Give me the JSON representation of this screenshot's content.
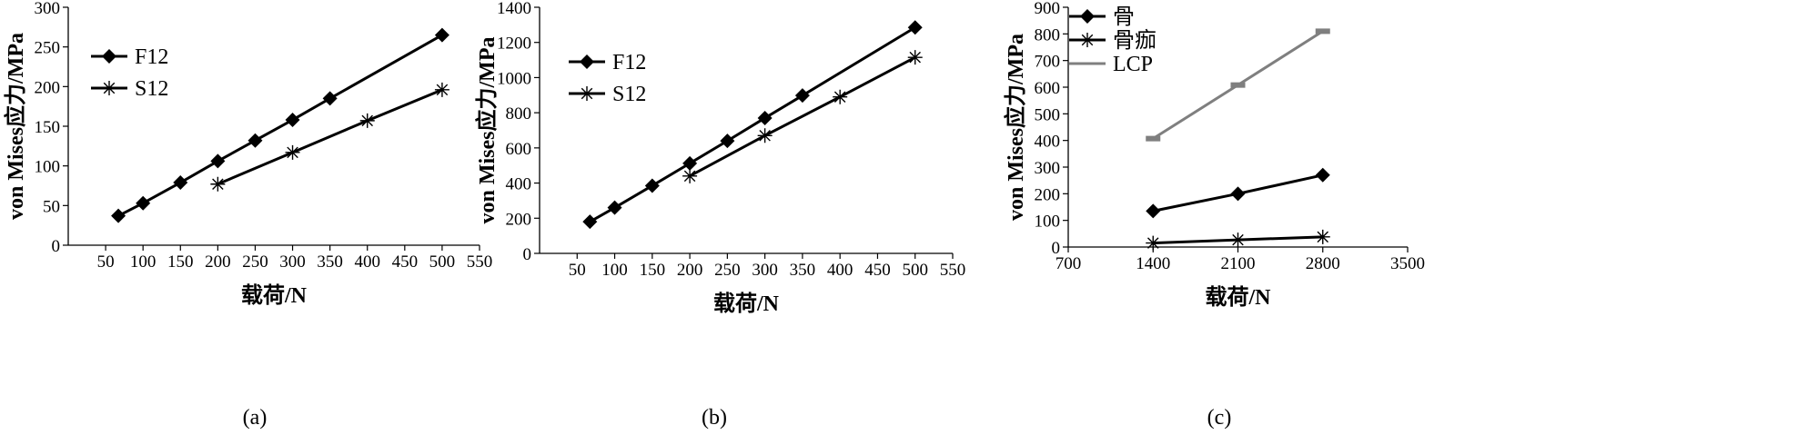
{
  "chart_data": [
    {
      "type": "line",
      "caption": "(a)",
      "xlabel": "载荷/N",
      "ylabel": "von Mises应力/MPa",
      "xlim": [
        0,
        550
      ],
      "ylim": [
        0,
        300
      ],
      "xticks": [
        50,
        100,
        150,
        200,
        250,
        300,
        350,
        400,
        450,
        500,
        550
      ],
      "yticks": [
        0,
        50,
        100,
        150,
        200,
        250,
        300
      ],
      "xtick_labels": [
        "50",
        "100",
        "150",
        "200",
        "250",
        "300",
        "350",
        "400",
        "450",
        "500",
        "550"
      ],
      "ytick_labels": [
        "0",
        "50",
        "100",
        "150",
        "200",
        "250",
        "300"
      ],
      "legend": "top-left",
      "grid": false,
      "series": [
        {
          "name": "F12",
          "marker": "diamond",
          "color": "#000000",
          "x": [
            67,
            100,
            150,
            200,
            250,
            300,
            350,
            500
          ],
          "y": [
            37,
            53,
            79,
            106,
            132,
            158,
            185,
            265
          ]
        },
        {
          "name": "S12",
          "marker": "asterisk",
          "color": "#000000",
          "x": [
            200,
            300,
            400,
            500
          ],
          "y": [
            77,
            117,
            157,
            196
          ]
        }
      ]
    },
    {
      "type": "line",
      "caption": "(b)",
      "xlabel": "载荷/N",
      "ylabel": "von Mises应力/MPa",
      "xlim": [
        0,
        550
      ],
      "ylim": [
        0,
        1400
      ],
      "xticks": [
        50,
        100,
        150,
        200,
        250,
        300,
        350,
        400,
        450,
        500,
        550
      ],
      "yticks": [
        0,
        200,
        400,
        600,
        800,
        1000,
        1200,
        1400
      ],
      "xtick_labels": [
        "50",
        "100",
        "150",
        "200",
        "250",
        "300",
        "350",
        "400",
        "450",
        "500",
        "550"
      ],
      "ytick_labels": [
        "0",
        "200",
        "400",
        "600",
        "800",
        "1000",
        "1200",
        "1400"
      ],
      "legend": "top-left",
      "grid": false,
      "series": [
        {
          "name": "F12",
          "marker": "diamond",
          "color": "#000000",
          "x": [
            67,
            100,
            150,
            200,
            250,
            300,
            350,
            500
          ],
          "y": [
            180,
            260,
            385,
            512,
            640,
            770,
            898,
            1285
          ]
        },
        {
          "name": "S12",
          "marker": "asterisk",
          "color": "#000000",
          "x": [
            200,
            300,
            400,
            500
          ],
          "y": [
            440,
            670,
            890,
            1115
          ]
        }
      ]
    },
    {
      "type": "line",
      "caption": "(c)",
      "xlabel": "载荷/N",
      "ylabel": "von Mises应力/MPa",
      "xlim": [
        700,
        3500
      ],
      "ylim": [
        0,
        900
      ],
      "xticks": [
        700,
        1400,
        2100,
        2800,
        3500
      ],
      "yticks": [
        0,
        100,
        200,
        300,
        400,
        500,
        600,
        700,
        800,
        900
      ],
      "xtick_labels": [
        "700",
        "1400",
        "2100",
        "2800",
        "3500"
      ],
      "ytick_labels": [
        "0",
        "100",
        "200",
        "300",
        "400",
        "500",
        "600",
        "700",
        "800",
        "900"
      ],
      "legend": "top-left",
      "grid": false,
      "series": [
        {
          "name": "骨",
          "marker": "diamond",
          "color": "#000000",
          "x": [
            1400,
            2100,
            2800
          ],
          "y": [
            135,
            200,
            270
          ]
        },
        {
          "name": "骨痂",
          "marker": "asterisk",
          "color": "#000000",
          "x": [
            1400,
            2100,
            2800
          ],
          "y": [
            15,
            27,
            38
          ]
        },
        {
          "name": "LCP",
          "marker": "dash",
          "color": "#7f7f7f",
          "x": [
            1400,
            2100,
            2800
          ],
          "y": [
            407,
            608,
            810
          ]
        }
      ]
    }
  ]
}
